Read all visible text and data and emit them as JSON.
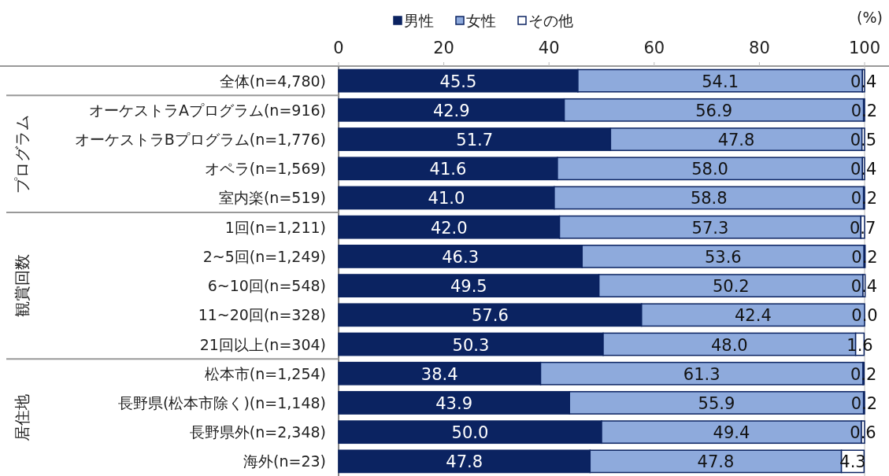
{
  "chart_data": {
    "type": "bar",
    "orientation": "horizontal",
    "stacked": true,
    "xlabel": "(%)",
    "categories": [
      "全体(n=4,780)",
      "オーケストラAプログラム(n=916)",
      "オーケストラBプログラム(n=1,776)",
      "オペラ(n=1,569)",
      "室内楽(n=519)",
      "1回(n=1,211)",
      "2~5回(n=1,249)",
      "6~10回(n=548)",
      "11~20回(n=328)",
      "21回以上(n=304)",
      "松本市(n=1,254)",
      "長野県(松本市除く)(n=1,148)",
      "長野県外(n=2,348)",
      "海外(n=23)"
    ],
    "series": [
      {
        "name": "男性",
        "color": "#0b2361",
        "values": [
          45.5,
          42.9,
          51.7,
          41.6,
          41.0,
          42.0,
          46.3,
          49.5,
          57.6,
          50.3,
          38.4,
          43.9,
          50.0,
          47.8
        ],
        "value_labels": [
          "45.5",
          "42.9",
          "51.7",
          "41.6",
          "41.0",
          "42.0",
          "46.3",
          "49.5",
          "57.6",
          "50.3",
          "38.4",
          "43.9",
          "50.0",
          "47.8"
        ]
      },
      {
        "name": "女性",
        "color": "#8eaadc",
        "values": [
          54.1,
          56.9,
          47.8,
          58.0,
          58.8,
          57.3,
          53.6,
          50.2,
          42.4,
          48.0,
          61.3,
          55.9,
          49.4,
          47.8
        ],
        "value_labels": [
          "54.1",
          "56.9",
          "47.8",
          "58.0",
          "58.8",
          "57.3",
          "53.6",
          "50.2",
          "42.4",
          "48.0",
          "61.3",
          "55.9",
          "49.4",
          "47.8"
        ]
      },
      {
        "name": "その他",
        "color": "#ffffff",
        "values": [
          0.4,
          0.2,
          0.5,
          0.4,
          0.2,
          0.7,
          0.2,
          0.4,
          0.0,
          1.6,
          0.2,
          0.2,
          0.6,
          4.3
        ],
        "value_labels": [
          "0.4",
          "0.2",
          "0.5",
          "0.4",
          "0.2",
          "0.7",
          "0.2",
          "0.4",
          "0.0",
          "1.6",
          "0.2",
          "0.2",
          "0.6",
          "4.3"
        ]
      }
    ],
    "xlim": [
      0,
      100
    ],
    "xticks": [
      0,
      20,
      40,
      60,
      80,
      100
    ],
    "legend": "top",
    "grid": false,
    "annotations": [
      "プログラム",
      "観賞回数",
      "居住地"
    ]
  }
}
